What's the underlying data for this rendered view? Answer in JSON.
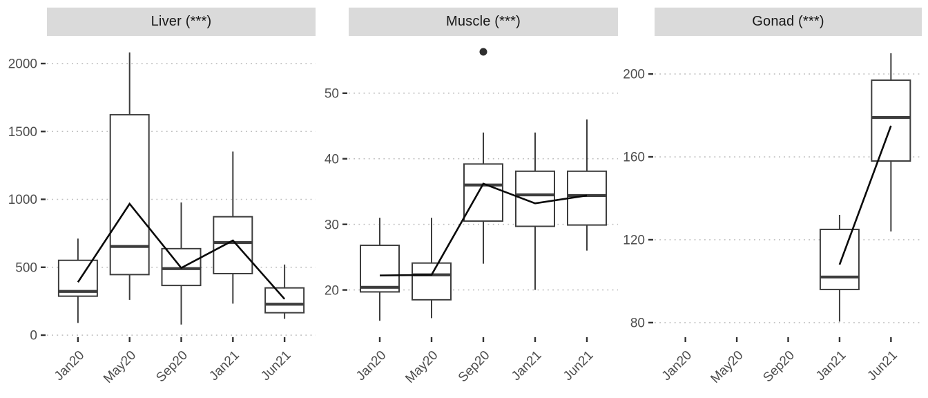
{
  "figure": {
    "background": "#ffffff",
    "grid_style": "horizontal-dotted",
    "legend": "none",
    "strip_background": "#dadada",
    "box_color": "#3d3d3d",
    "mean_line_color": "#0a0a0a",
    "tick_label_color": "#4d4d4d",
    "grid_color": "#bdbdbd"
  },
  "chart_data": [
    {
      "type": "boxplot",
      "title": "Liver (***)",
      "xlabel": "",
      "ylabel": "",
      "categories": [
        "Jan20",
        "May20",
        "Sep20",
        "Jan21",
        "Jun21"
      ],
      "yticks": [
        0,
        500,
        1000,
        1500,
        2000
      ],
      "ylim": [
        -10,
        2178
      ],
      "boxes": [
        {
          "category": "Jan20",
          "low": 90,
          "q1": 287,
          "median": 322,
          "q3": 551,
          "high": 711
        },
        {
          "category": "May20",
          "low": 260,
          "q1": 446,
          "median": 653,
          "q3": 1623,
          "high": 2082
        },
        {
          "category": "Sep20",
          "low": 78,
          "q1": 366,
          "median": 490,
          "q3": 637,
          "high": 977
        },
        {
          "category": "Jan21",
          "low": 232,
          "q1": 453,
          "median": 682,
          "q3": 872,
          "high": 1352
        },
        {
          "category": "Jun21",
          "low": 120,
          "q1": 165,
          "median": 228,
          "q3": 348,
          "high": 520
        }
      ],
      "mean_line": [
        390,
        967,
        495,
        697,
        266
      ],
      "outliers": []
    },
    {
      "type": "boxplot",
      "title": "Muscle (***)",
      "xlabel": "",
      "ylabel": "",
      "categories": [
        "Jan20",
        "May20",
        "Sep20",
        "Jan21",
        "Jun21"
      ],
      "yticks": [
        20,
        30,
        40,
        50
      ],
      "ylim": [
        12.9,
        58.2
      ],
      "boxes": [
        {
          "category": "Jan20",
          "low": 15.3,
          "q1": 19.7,
          "median": 20.4,
          "q3": 26.8,
          "high": 31
        },
        {
          "category": "May20",
          "low": 15.7,
          "q1": 18.5,
          "median": 22.3,
          "q3": 24.1,
          "high": 31
        },
        {
          "category": "Sep20",
          "low": 24,
          "q1": 30.5,
          "median": 36,
          "q3": 39.2,
          "high": 44
        },
        {
          "category": "Jan21",
          "low": 20,
          "q1": 29.7,
          "median": 34.5,
          "q3": 38.1,
          "high": 44
        },
        {
          "category": "Jun21",
          "low": 26,
          "q1": 29.9,
          "median": 34.4,
          "q3": 38.1,
          "high": 46
        }
      ],
      "mean_line": [
        22.2,
        22.3,
        36.2,
        33.2,
        34.4
      ],
      "outliers": [
        {
          "category": "Sep20",
          "value": 56.3
        }
      ]
    },
    {
      "type": "boxplot",
      "title": "Gonad (***)",
      "xlabel": "",
      "ylabel": "",
      "categories": [
        "Jan20",
        "May20",
        "Sep20",
        "Jan21",
        "Jun21"
      ],
      "yticks": [
        80,
        120,
        160,
        200
      ],
      "ylim": [
        73.3,
        216.7
      ],
      "boxes": [
        null,
        null,
        null,
        {
          "category": "Jan21",
          "low": 80.5,
          "q1": 96,
          "median": 102,
          "q3": 125,
          "high": 132
        },
        {
          "category": "Jun21",
          "low": 124,
          "q1": 158,
          "median": 179,
          "q3": 197,
          "high": 210
        }
      ],
      "mean_line": [
        null,
        null,
        null,
        108,
        175
      ],
      "outliers": []
    }
  ]
}
